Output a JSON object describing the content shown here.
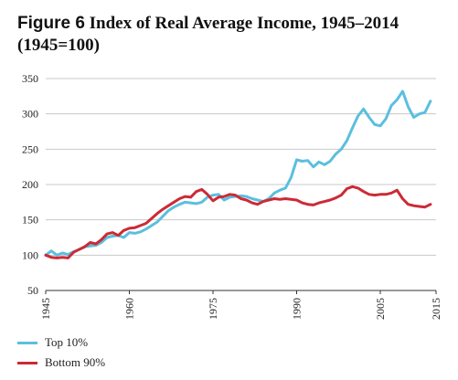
{
  "figure": {
    "label": "Figure 6",
    "title": "Index of Real Average Income, 1945–2014",
    "subtitle": "(1945=100)"
  },
  "chart_data": {
    "type": "line",
    "xlim": [
      1945,
      2015
    ],
    "ylim": [
      50,
      350
    ],
    "x_ticks": [
      "1945",
      "1960",
      "1975",
      "1990",
      "2005",
      "2015"
    ],
    "y_ticks": [
      "350",
      "300",
      "250",
      "200",
      "150",
      "100",
      "50"
    ],
    "grid": "horizontal",
    "legend_position": "bottom-left",
    "series": [
      {
        "name": "Top 10%",
        "color": "#5bbfde",
        "x": [
          1945,
          1946,
          1947,
          1948,
          1949,
          1950,
          1951,
          1952,
          1953,
          1954,
          1955,
          1956,
          1957,
          1958,
          1959,
          1960,
          1961,
          1962,
          1963,
          1964,
          1965,
          1966,
          1967,
          1968,
          1969,
          1970,
          1971,
          1972,
          1973,
          1974,
          1975,
          1976,
          1977,
          1978,
          1979,
          1980,
          1981,
          1982,
          1983,
          1984,
          1985,
          1986,
          1987,
          1988,
          1989,
          1990,
          1991,
          1992,
          1993,
          1994,
          1995,
          1996,
          1997,
          1998,
          1999,
          2000,
          2001,
          2002,
          2003,
          2004,
          2005,
          2006,
          2007,
          2008,
          2009,
          2010,
          2011,
          2012,
          2013,
          2014
        ],
        "values": [
          100,
          106,
          100,
          103,
          101,
          105,
          108,
          112,
          113,
          114,
          118,
          125,
          127,
          128,
          125,
          132,
          131,
          133,
          137,
          142,
          147,
          155,
          163,
          168,
          172,
          175,
          174,
          173,
          175,
          182,
          185,
          186,
          178,
          182,
          183,
          184,
          183,
          180,
          178,
          176,
          180,
          188,
          192,
          195,
          210,
          235,
          233,
          234,
          225,
          232,
          228,
          233,
          243,
          250,
          262,
          280,
          297,
          307,
          295,
          285,
          283,
          293,
          312,
          320,
          332,
          310,
          295,
          300,
          302,
          318
        ]
      },
      {
        "name": "Bottom 90%",
        "color": "#cc2a36",
        "x": [
          1945,
          1946,
          1947,
          1948,
          1949,
          1950,
          1951,
          1952,
          1953,
          1954,
          1955,
          1956,
          1957,
          1958,
          1959,
          1960,
          1961,
          1962,
          1963,
          1964,
          1965,
          1966,
          1967,
          1968,
          1969,
          1970,
          1971,
          1972,
          1973,
          1974,
          1975,
          1976,
          1977,
          1978,
          1979,
          1980,
          1981,
          1982,
          1983,
          1984,
          1985,
          1986,
          1987,
          1988,
          1989,
          1990,
          1991,
          1992,
          1993,
          1994,
          1995,
          1996,
          1997,
          1998,
          1999,
          2000,
          2001,
          2002,
          2003,
          2004,
          2005,
          2006,
          2007,
          2008,
          2009,
          2010,
          2011,
          2012,
          2013,
          2014
        ],
        "values": [
          100,
          97,
          96,
          97,
          96,
          104,
          108,
          112,
          118,
          116,
          122,
          130,
          132,
          128,
          135,
          138,
          139,
          142,
          145,
          152,
          159,
          165,
          170,
          175,
          180,
          183,
          182,
          190,
          193,
          186,
          177,
          182,
          183,
          186,
          185,
          180,
          178,
          174,
          172,
          176,
          178,
          180,
          179,
          180,
          179,
          178,
          174,
          172,
          171,
          174,
          176,
          178,
          181,
          185,
          194,
          197,
          195,
          190,
          186,
          185,
          186,
          186,
          188,
          192,
          180,
          172,
          170,
          169,
          168,
          172
        ]
      }
    ]
  }
}
